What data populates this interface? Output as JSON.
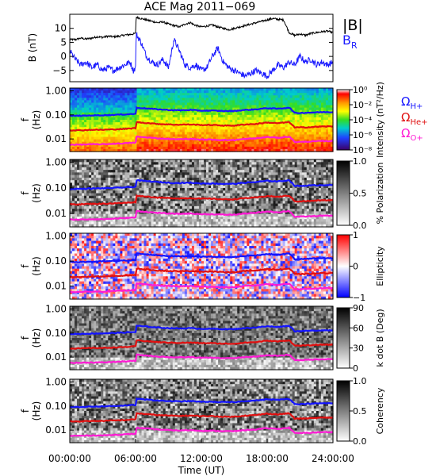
{
  "title": "ACE Mag 2011−069",
  "xaxis": {
    "label": "Time (UT)",
    "range": [
      0,
      24
    ],
    "ticks": [
      0,
      6,
      12,
      18,
      24
    ],
    "tick_labels": [
      "00:00:00",
      "06:00:00",
      "12:00:00",
      "18:00:00",
      "24:00:00"
    ]
  },
  "colors": {
    "btot": "#000000",
    "br": "#1b1bff",
    "h": "#1414ff",
    "he": "#e01010",
    "o": "#ff1ad4",
    "rb_neg": "#2020ff",
    "rb_pos": "#ff2020"
  },
  "chart_data": [
    {
      "type": "line",
      "title": "ACE Mag 2011−069",
      "ylabel": "B (nT)",
      "ylim": [
        -9,
        15
      ],
      "yticks": [
        -5,
        0,
        5,
        10
      ],
      "ytick_labels": [
        "−5",
        "0",
        "5",
        "10"
      ],
      "legend": [
        "|B|",
        "B_R"
      ],
      "legend_position": "top-right, outside",
      "series": [
        {
          "name": "|B|",
          "x": [
            0,
            0.5,
            1,
            1.5,
            2,
            2.5,
            3,
            3.5,
            4,
            4.5,
            5,
            5.5,
            5.8,
            6.0,
            6.05,
            6.5,
            7,
            7.5,
            8,
            8.5,
            9,
            9.5,
            10,
            10.5,
            11,
            11.5,
            12,
            12.5,
            13,
            13.5,
            14,
            14.5,
            15,
            15.5,
            16,
            16.5,
            17,
            17.5,
            18,
            18.5,
            19,
            19.5,
            20,
            20.5,
            21,
            21.5,
            22,
            22.5,
            23,
            23.5,
            24
          ],
          "values": [
            6,
            6,
            6.5,
            6.2,
            6.5,
            7,
            6.8,
            7.2,
            7,
            7.2,
            7.6,
            7.8,
            8,
            8.2,
            14,
            13.5,
            13,
            12.5,
            12,
            12.3,
            11.5,
            11,
            10.5,
            11.5,
            12,
            11,
            10.5,
            10.8,
            11.2,
            10.5,
            10,
            9.5,
            10,
            10.5,
            11,
            11.5,
            12,
            12.5,
            13,
            13.5,
            13.2,
            13,
            8.5,
            7.5,
            8,
            7.5,
            8.2,
            8.5,
            8.8,
            9,
            8.5
          ]
        },
        {
          "name": "B_R",
          "x": [
            0,
            0.5,
            1,
            1.5,
            2,
            2.5,
            3,
            3.5,
            4,
            4.5,
            5,
            5.5,
            5.8,
            6.0,
            6.05,
            6.5,
            7,
            7.5,
            8,
            8.5,
            9,
            9.5,
            10,
            10.5,
            11,
            11.5,
            12,
            12.5,
            13,
            13.5,
            14,
            14.5,
            15,
            15.5,
            16,
            16.5,
            17,
            17.5,
            18,
            18.5,
            19,
            19.5,
            20,
            20.5,
            21,
            21.5,
            22,
            22.5,
            23,
            23.5,
            24
          ],
          "values": [
            2,
            -1,
            -3,
            -2,
            -4,
            -3,
            -5,
            -4,
            -5,
            -4,
            -3,
            -2,
            -5,
            -4,
            8,
            5,
            0,
            -2,
            -3,
            -1,
            -4,
            6,
            2,
            -3,
            -4,
            -3,
            -5,
            -4,
            0,
            3,
            -2,
            -4,
            -5,
            -6,
            -7,
            -6,
            -5,
            -6,
            -7,
            -5,
            -3,
            -4,
            -2,
            -3,
            0,
            -2,
            -1,
            -3,
            -2,
            -3,
            -2
          ]
        }
      ]
    },
    {
      "type": "heatmap",
      "ylabel": "f (Hz)",
      "colorbar_label": "Intensity (nT²/Hz)",
      "colorbar_ticks": [
        "10⁰",
        "10⁻²",
        "10⁻⁴",
        "10⁻⁶",
        "10⁻⁸"
      ],
      "annotations": [
        "ΩH+",
        "ΩHe+",
        "ΩO+"
      ]
    },
    {
      "type": "heatmap",
      "ylabel": "f (Hz)",
      "colorbar_label": "% Polarization",
      "colorbar_ticks": [
        "1.0",
        "0.5",
        "0.0"
      ]
    },
    {
      "type": "heatmap",
      "ylabel": "f (Hz)",
      "colorbar_label": "Ellipticity",
      "colorbar_ticks": [
        "1",
        "0",
        "−1"
      ]
    },
    {
      "type": "heatmap",
      "ylabel": "f (Hz)",
      "colorbar_label": "k dot B (Deg)",
      "colorbar_ticks": [
        "90",
        "60",
        "30",
        "0"
      ]
    },
    {
      "type": "heatmap",
      "ylabel": "f (Hz)",
      "colorbar_label": "Coherency",
      "colorbar_ticks": [
        "1.0",
        "0.5",
        "0.0"
      ]
    }
  ],
  "spectrogram_axis": {
    "ylim": [
      0.003,
      1.3
    ],
    "log_scale": true,
    "yticks": [
      1.0,
      0.1,
      0.01
    ],
    "ytick_labels": [
      "1.00",
      "0.10",
      "0.01"
    ]
  },
  "gyrofrequency_lines": {
    "x": [
      0,
      1,
      2,
      3,
      4,
      5,
      5.9,
      6.0,
      6.05,
      7,
      8,
      9,
      10,
      11,
      12,
      13,
      14,
      15,
      16,
      17,
      18,
      19,
      20,
      20.5,
      21,
      22,
      23,
      24
    ],
    "H+": [
      0.092,
      0.092,
      0.095,
      0.097,
      0.1,
      0.105,
      0.11,
      0.11,
      0.2,
      0.185,
      0.17,
      0.16,
      0.155,
      0.16,
      0.15,
      0.15,
      0.145,
      0.145,
      0.16,
      0.17,
      0.19,
      0.18,
      0.2,
      0.12,
      0.12,
      0.125,
      0.13,
      0.13
    ],
    "He+": [
      0.023,
      0.023,
      0.024,
      0.024,
      0.025,
      0.026,
      0.028,
      0.028,
      0.05,
      0.046,
      0.042,
      0.04,
      0.039,
      0.04,
      0.038,
      0.038,
      0.036,
      0.036,
      0.04,
      0.042,
      0.048,
      0.045,
      0.05,
      0.03,
      0.03,
      0.031,
      0.033,
      0.033
    ],
    "O+": [
      0.0058,
      0.0058,
      0.006,
      0.006,
      0.0063,
      0.0066,
      0.007,
      0.007,
      0.0125,
      0.0116,
      0.0106,
      0.01,
      0.0097,
      0.01,
      0.0094,
      0.0094,
      0.009,
      0.009,
      0.01,
      0.0106,
      0.012,
      0.0112,
      0.0125,
      0.0075,
      0.0075,
      0.0078,
      0.0082,
      0.0082
    ]
  }
}
